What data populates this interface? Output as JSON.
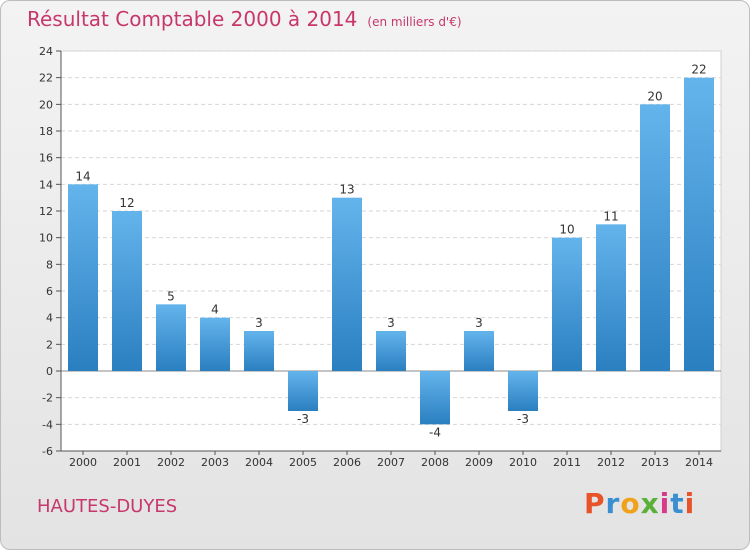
{
  "header": {
    "title": "Résultat Comptable 2000 à 2014",
    "subtitle": "(en milliers d'€)"
  },
  "footer": {
    "location": "HAUTES-DUYES",
    "logo_text": "Proxiti",
    "logo_colors": [
      "#e8542a",
      "#3a8fd0",
      "#f0a21a",
      "#5bb03a",
      "#d63a8a",
      "#3a8fd0",
      "#e8542a"
    ]
  },
  "colors": {
    "bar_top": "#64b4ec",
    "bar_bottom": "#2a7fc0",
    "title": "#c8376c"
  },
  "chart_data": {
    "type": "bar",
    "categories": [
      "2000",
      "2001",
      "2002",
      "2003",
      "2004",
      "2005",
      "2006",
      "2007",
      "2008",
      "2009",
      "2010",
      "2011",
      "2012",
      "2013",
      "2014"
    ],
    "values": [
      14,
      12,
      5,
      4,
      3,
      -3,
      13,
      3,
      -4,
      3,
      -3,
      10,
      11,
      20,
      22
    ],
    "ylim": [
      -6,
      24
    ],
    "yticks": [
      -6,
      -4,
      -2,
      0,
      2,
      4,
      6,
      8,
      10,
      12,
      14,
      16,
      18,
      20,
      22,
      24
    ],
    "grid": "horizontal-dashed",
    "title": "Résultat Comptable 2000 à 2014",
    "xlabel": "",
    "ylabel": ""
  }
}
